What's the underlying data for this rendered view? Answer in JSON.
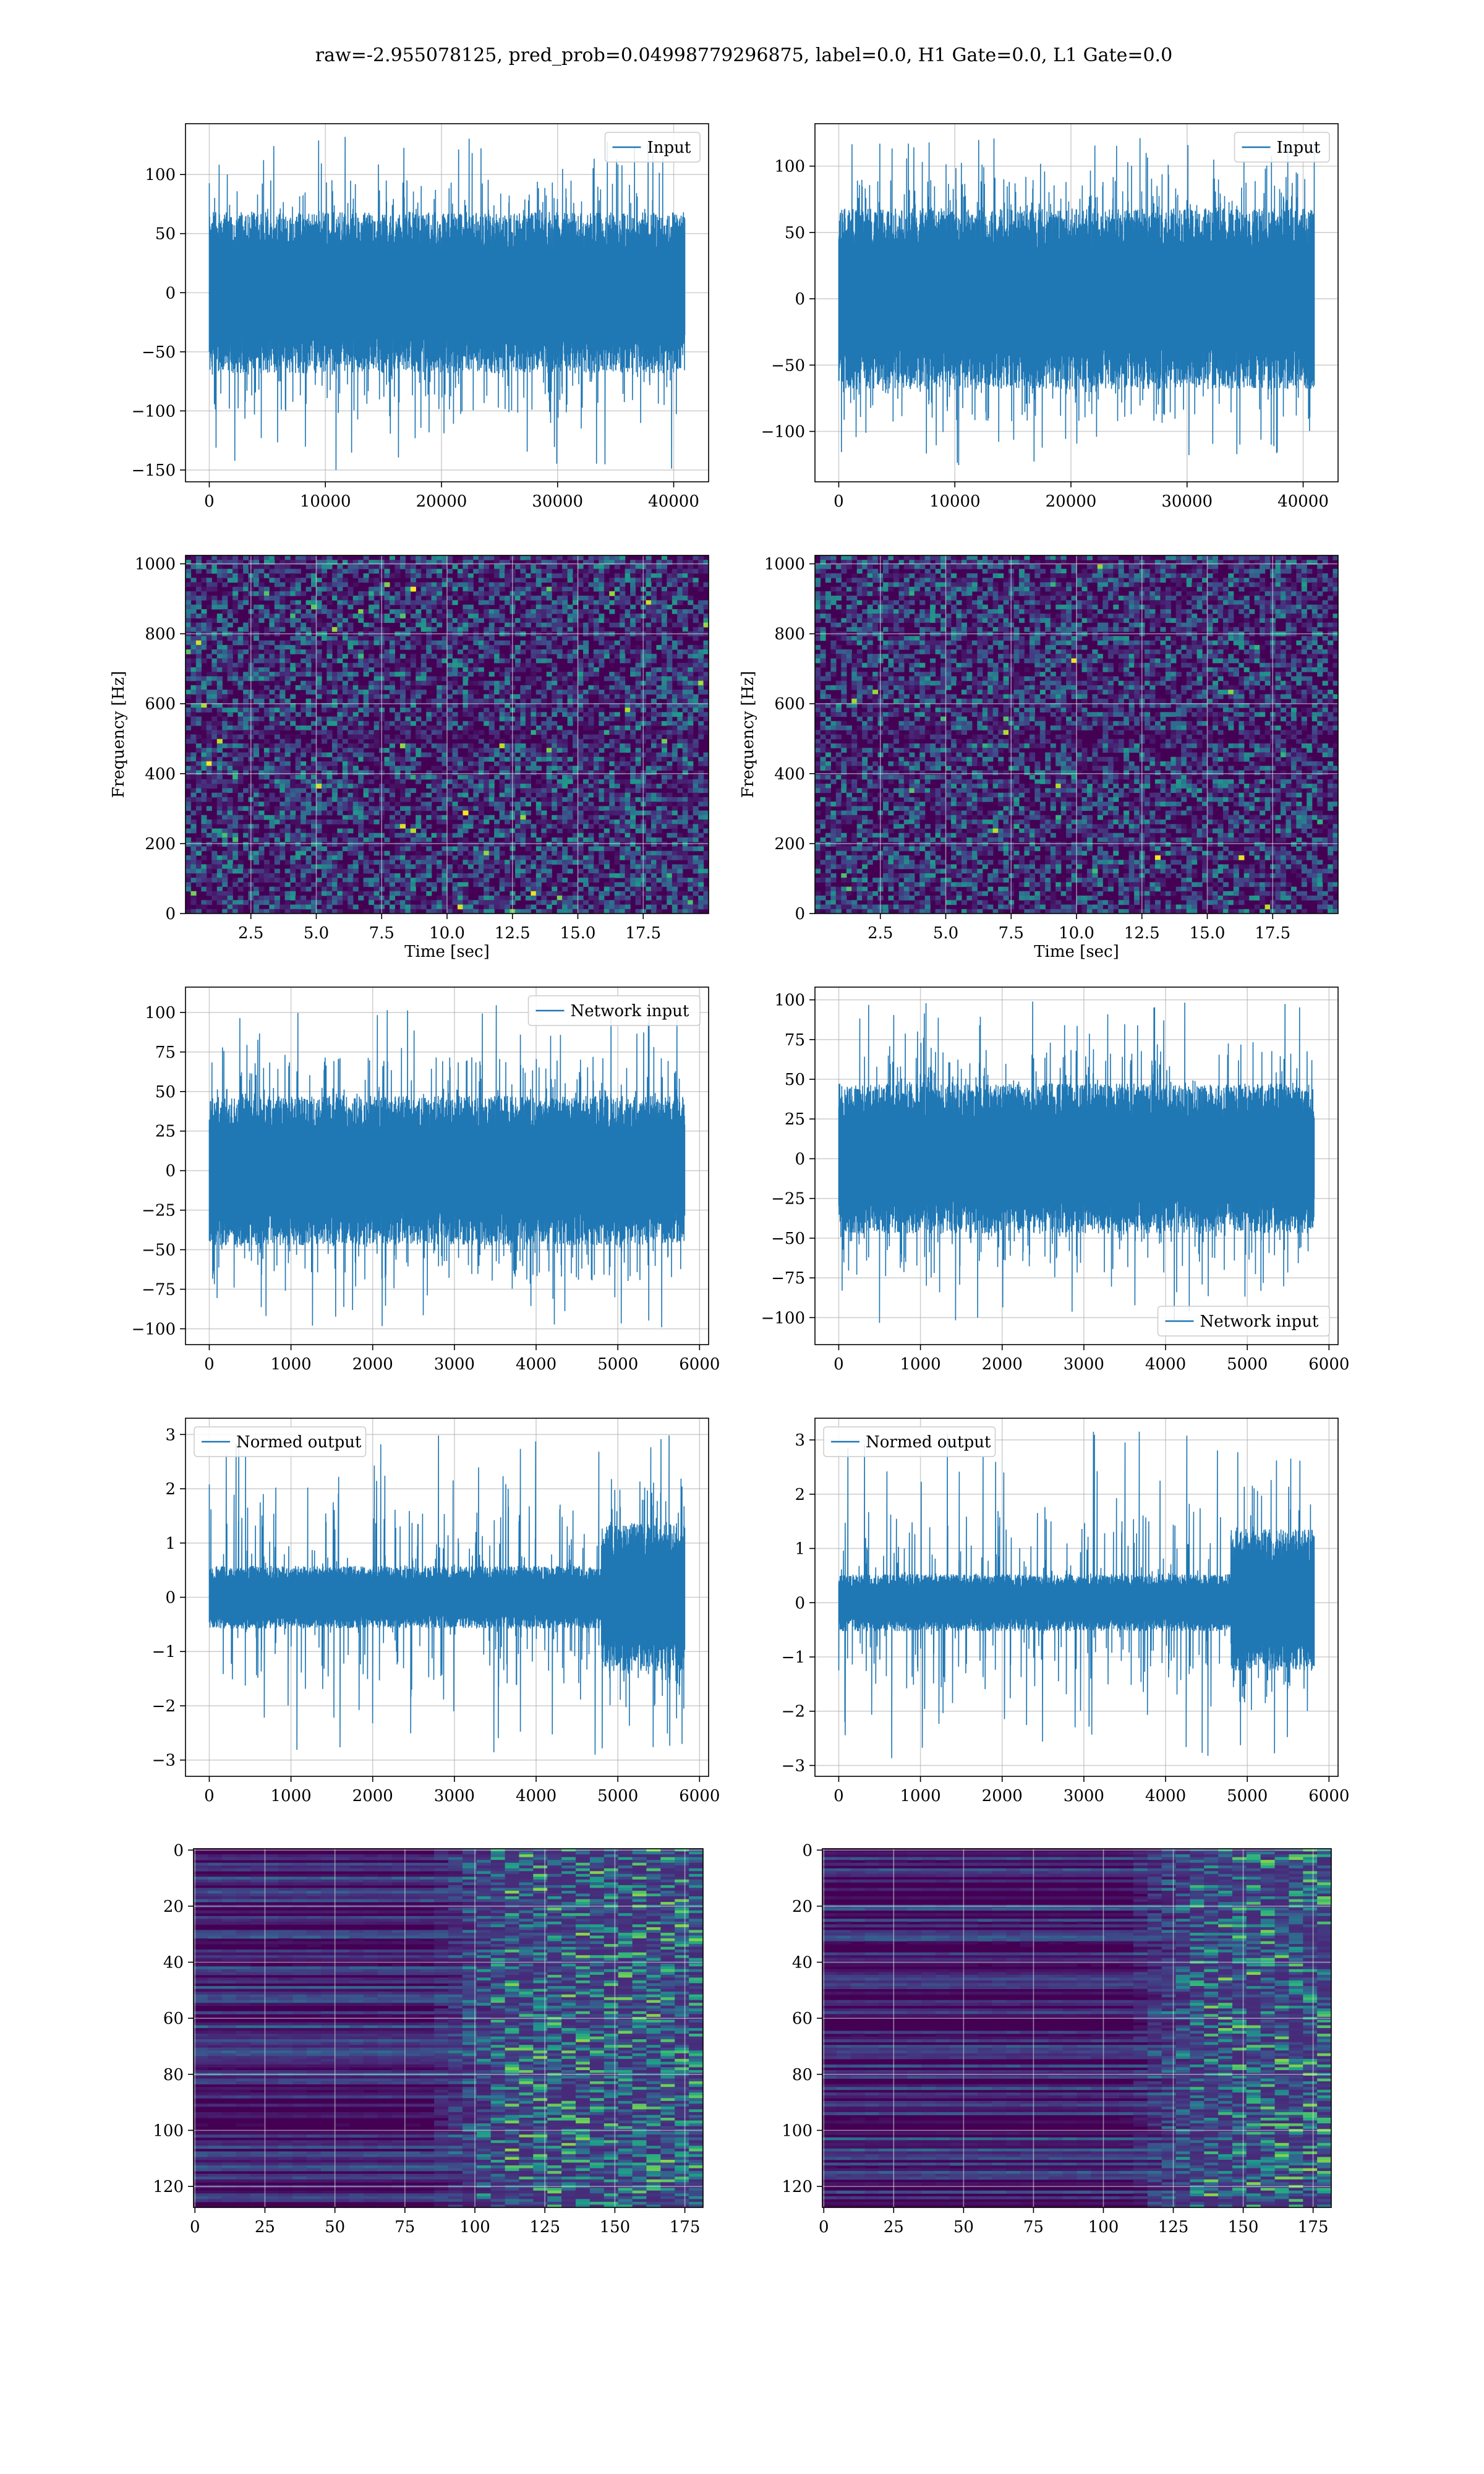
{
  "figure": {
    "title": "raw=-2.955078125, pred_prob=0.04998779296875, label=0.0, H1 Gate=0.0, L1 Gate=0.0",
    "colors": {
      "line": "#1f77b4",
      "grid": "#b0b0b0",
      "axes": "#000000",
      "heat_low": "#440154",
      "heat_high": "#fde725"
    }
  },
  "chart_data": [
    {
      "id": "h1_input",
      "type": "line",
      "legend": "Input",
      "legend_loc": "upper right",
      "series": [
        {
          "name": "Input",
          "n_points": 40960,
          "envelope": {
            "typical": [
              -65,
              65
            ],
            "peaks": [
              -150,
              133
            ]
          }
        }
      ],
      "xlim": [
        -2048,
        43008
      ],
      "ylim": [
        -160,
        143
      ],
      "xticks": [
        0,
        10000,
        20000,
        30000,
        40000
      ],
      "xticklabels": [
        "0",
        "10000",
        "20000",
        "30000",
        "40000"
      ],
      "yticks": [
        -150,
        -100,
        -50,
        0,
        50,
        100
      ],
      "yticklabels": [
        "−150",
        "−100",
        "−50",
        "0",
        "50",
        "100"
      ],
      "xlabel": "",
      "ylabel": "",
      "grid": true
    },
    {
      "id": "l1_input",
      "type": "line",
      "legend": "Input",
      "legend_loc": "upper right",
      "series": [
        {
          "name": "Input",
          "n_points": 40960,
          "envelope": {
            "typical": [
              -65,
              65
            ],
            "peaks": [
              -127,
              122
            ]
          }
        }
      ],
      "xlim": [
        -2048,
        43008
      ],
      "ylim": [
        -138,
        132
      ],
      "xticks": [
        0,
        10000,
        20000,
        30000,
        40000
      ],
      "xticklabels": [
        "0",
        "10000",
        "20000",
        "30000",
        "40000"
      ],
      "yticks": [
        -100,
        -50,
        0,
        50,
        100
      ],
      "yticklabels": [
        "−100",
        "−50",
        "0",
        "50",
        "100"
      ],
      "xlabel": "",
      "ylabel": "",
      "grid": true
    },
    {
      "id": "h1_spectrogram",
      "type": "heatmap",
      "colormap": "viridis",
      "xlim": [
        0,
        20
      ],
      "ylim": [
        0,
        1024
      ],
      "xticks": [
        2.5,
        5.0,
        7.5,
        10.0,
        12.5,
        15.0,
        17.5
      ],
      "xticklabels": [
        "2.5",
        "5.0",
        "7.5",
        "10.0",
        "12.5",
        "15.0",
        "17.5"
      ],
      "yticks": [
        0,
        200,
        400,
        600,
        800,
        1000
      ],
      "yticklabels": [
        "0",
        "200",
        "400",
        "600",
        "800",
        "1000"
      ],
      "xlabel": "Time [sec]",
      "ylabel": "Frequency [Hz]",
      "grid": true,
      "cols": 100,
      "rows": 80,
      "seed": 11,
      "dark_band_hz": [
        490,
        520
      ]
    },
    {
      "id": "l1_spectrogram",
      "type": "heatmap",
      "colormap": "viridis",
      "xlim": [
        0,
        20
      ],
      "ylim": [
        0,
        1024
      ],
      "xticks": [
        2.5,
        5.0,
        7.5,
        10.0,
        12.5,
        15.0,
        17.5
      ],
      "xticklabels": [
        "2.5",
        "5.0",
        "7.5",
        "10.0",
        "12.5",
        "15.0",
        "17.5"
      ],
      "yticks": [
        0,
        200,
        400,
        600,
        800,
        1000
      ],
      "yticklabels": [
        "0",
        "200",
        "400",
        "600",
        "800",
        "1000"
      ],
      "xlabel": "Time [sec]",
      "ylabel": "Frequency [Hz]",
      "grid": true,
      "cols": 100,
      "rows": 80,
      "seed": 29,
      "dark_band_hz": [
        490,
        520
      ]
    },
    {
      "id": "h1_network_input",
      "type": "line",
      "legend": "Network input",
      "legend_loc": "upper right",
      "series": [
        {
          "name": "Network input",
          "n_points": 5820,
          "envelope": {
            "typical": [
              -45,
              45
            ],
            "peaks": [
              -100,
              105
            ]
          }
        }
      ],
      "xlim": [
        -291,
        6111
      ],
      "ylim": [
        -110,
        116
      ],
      "xticks": [
        0,
        1000,
        2000,
        3000,
        4000,
        5000,
        6000
      ],
      "xticklabels": [
        "0",
        "1000",
        "2000",
        "3000",
        "4000",
        "5000",
        "6000"
      ],
      "yticks": [
        -100,
        -75,
        -50,
        -25,
        0,
        25,
        50,
        75,
        100
      ],
      "yticklabels": [
        "−100",
        "−75",
        "−50",
        "−25",
        "0",
        "25",
        "50",
        "75",
        "100"
      ],
      "xlabel": "",
      "ylabel": "",
      "grid": true
    },
    {
      "id": "l1_network_input",
      "type": "line",
      "legend": "Network input",
      "legend_loc": "lower right",
      "series": [
        {
          "name": "Network input",
          "n_points": 5820,
          "envelope": {
            "typical": [
              -45,
              45
            ],
            "peaks": [
              -105,
              99
            ]
          }
        }
      ],
      "xlim": [
        -291,
        6111
      ],
      "ylim": [
        -117,
        108
      ],
      "xticks": [
        0,
        1000,
        2000,
        3000,
        4000,
        5000,
        6000
      ],
      "xticklabels": [
        "0",
        "1000",
        "2000",
        "3000",
        "4000",
        "5000",
        "6000"
      ],
      "yticks": [
        -100,
        -75,
        -50,
        -25,
        0,
        25,
        50,
        75,
        100
      ],
      "yticklabels": [
        "−100",
        "−75",
        "−50",
        "−25",
        "0",
        "25",
        "50",
        "75",
        "100"
      ],
      "xlabel": "",
      "ylabel": "",
      "grid": true
    },
    {
      "id": "h1_normed_output",
      "type": "line",
      "legend": "Normed output",
      "legend_loc": "upper left",
      "series": [
        {
          "name": "Normed output",
          "n_points": 5820,
          "envelope": {
            "typical": [
              -0.55,
              0.55
            ],
            "late_typical": [
              -1.3,
              1.3
            ],
            "late_start": 4800,
            "peaks": [
              -3.0,
              3.0
            ]
          }
        }
      ],
      "xlim": [
        -291,
        6111
      ],
      "ylim": [
        -3.3,
        3.3
      ],
      "xticks": [
        0,
        1000,
        2000,
        3000,
        4000,
        5000,
        6000
      ],
      "xticklabels": [
        "0",
        "1000",
        "2000",
        "3000",
        "4000",
        "5000",
        "6000"
      ],
      "yticks": [
        -3,
        -2,
        -1,
        0,
        1,
        2,
        3
      ],
      "yticklabels": [
        "−3",
        "−2",
        "−1",
        "0",
        "1",
        "2",
        "3"
      ],
      "xlabel": "",
      "ylabel": "",
      "grid": true
    },
    {
      "id": "l1_normed_output",
      "type": "line",
      "legend": "Normed output",
      "legend_loc": "upper left",
      "series": [
        {
          "name": "Normed output",
          "n_points": 5820,
          "envelope": {
            "typical": [
              -0.5,
              0.5
            ],
            "late_typical": [
              -1.2,
              1.3
            ],
            "late_start": 4800,
            "peaks": [
              -2.9,
              3.2
            ]
          }
        }
      ],
      "xlim": [
        -291,
        6111
      ],
      "ylim": [
        -3.2,
        3.4
      ],
      "xticks": [
        0,
        1000,
        2000,
        3000,
        4000,
        5000,
        6000
      ],
      "xticklabels": [
        "0",
        "1000",
        "2000",
        "3000",
        "4000",
        "5000",
        "6000"
      ],
      "yticks": [
        -3,
        -2,
        -1,
        0,
        1,
        2,
        3
      ],
      "yticklabels": [
        "−3",
        "−2",
        "−1",
        "0",
        "1",
        "2",
        "3"
      ],
      "xlabel": "",
      "ylabel": "",
      "grid": true
    },
    {
      "id": "h1_feature_map",
      "type": "heatmap",
      "colormap": "viridis",
      "xlim": [
        -0.5,
        181.5
      ],
      "ylim": [
        -0.5,
        127.5
      ],
      "xticks": [
        0,
        25,
        50,
        75,
        100,
        125,
        150,
        175
      ],
      "xticklabels": [
        "0",
        "25",
        "50",
        "75",
        "100",
        "125",
        "150",
        "175"
      ],
      "yticks": [
        0,
        20,
        40,
        60,
        80,
        100,
        120
      ],
      "yticklabels": [
        "0",
        "20",
        "40",
        "60",
        "80",
        "100",
        "120"
      ],
      "xlabel": "",
      "ylabel": "",
      "grid": true,
      "cols": 182,
      "rows": 128,
      "seed": 7,
      "active_from": 100
    },
    {
      "id": "l1_feature_map",
      "type": "heatmap",
      "colormap": "viridis",
      "xlim": [
        -0.5,
        181.5
      ],
      "ylim": [
        -0.5,
        127.5
      ],
      "xticks": [
        0,
        25,
        50,
        75,
        100,
        125,
        150,
        175
      ],
      "xticklabels": [
        "0",
        "25",
        "50",
        "75",
        "100",
        "125",
        "150",
        "175"
      ],
      "yticks": [
        0,
        20,
        40,
        60,
        80,
        100,
        120
      ],
      "yticklabels": [
        "0",
        "20",
        "40",
        "60",
        "80",
        "100",
        "120"
      ],
      "xlabel": "",
      "ylabel": "",
      "grid": true,
      "cols": 182,
      "rows": 128,
      "seed": 19,
      "active_from": 125
    }
  ]
}
